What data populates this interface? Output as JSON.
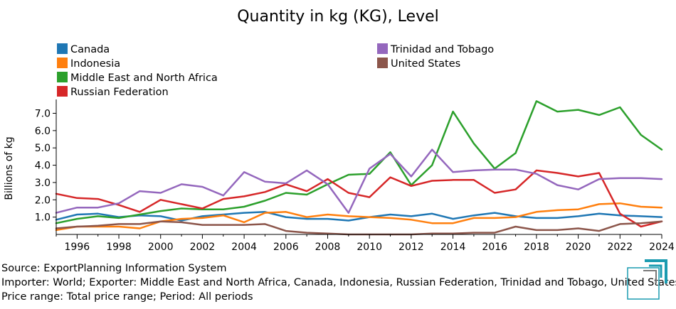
{
  "chart_data": {
    "type": "line",
    "title": "Quantity in kg (KG), Level",
    "xlabel": "",
    "ylabel": "Billions of kg",
    "xlim": [
      1995,
      2024
    ],
    "ylim": [
      0,
      7.8
    ],
    "x_ticks": [
      1996,
      1998,
      2000,
      2002,
      2004,
      2006,
      2008,
      2010,
      2012,
      2014,
      2016,
      2018,
      2020,
      2022,
      2024
    ],
    "y_ticks": [
      1.0,
      2.0,
      3.0,
      4.0,
      5.0,
      6.0,
      7.0
    ],
    "y_tick_labels": [
      "1.0",
      "2.0",
      "3.0",
      "4.0",
      "5.0",
      "6.0",
      "7.0"
    ],
    "grid": false,
    "legend_position": "top",
    "x": [
      1995,
      1996,
      1997,
      1998,
      1999,
      2000,
      2001,
      2002,
      2003,
      2004,
      2005,
      2006,
      2007,
      2008,
      2009,
      2010,
      2011,
      2012,
      2013,
      2014,
      2015,
      2016,
      2017,
      2018,
      2019,
      2020,
      2021,
      2022,
      2023,
      2024
    ],
    "series": [
      {
        "name": "Canada",
        "color": "#1f77b4",
        "values": [
          0.85,
          1.15,
          1.2,
          1.0,
          1.1,
          1.05,
          0.8,
          1.05,
          1.15,
          1.25,
          1.3,
          1.0,
          0.9,
          0.9,
          0.8,
          1.0,
          1.15,
          1.05,
          1.2,
          0.9,
          1.1,
          1.25,
          1.05,
          0.95,
          0.95,
          1.05,
          1.2,
          1.1,
          1.05,
          1.0
        ]
      },
      {
        "name": "Indonesia",
        "color": "#ff7f0e",
        "values": [
          0.25,
          0.45,
          0.45,
          0.45,
          0.35,
          0.75,
          0.9,
          0.95,
          1.1,
          0.7,
          1.25,
          1.3,
          1.0,
          1.15,
          1.05,
          1.0,
          0.95,
          0.85,
          0.65,
          0.65,
          0.95,
          0.95,
          1.0,
          1.3,
          1.4,
          1.45,
          1.75,
          1.8,
          1.6,
          1.55
        ]
      },
      {
        "name": "Middle East and North Africa",
        "color": "#2ca02c",
        "values": [
          0.65,
          0.9,
          1.05,
          0.95,
          1.15,
          1.35,
          1.5,
          1.45,
          1.45,
          1.6,
          1.95,
          2.4,
          2.3,
          2.9,
          3.45,
          3.5,
          4.75,
          2.85,
          4.0,
          7.1,
          5.25,
          3.8,
          4.7,
          7.7,
          7.1,
          7.2,
          6.9,
          7.35,
          5.75,
          4.9
        ]
      },
      {
        "name": "Russian Federation",
        "color": "#d62728",
        "values": [
          2.35,
          2.1,
          2.05,
          1.7,
          1.3,
          2.0,
          1.75,
          1.5,
          2.05,
          2.2,
          2.45,
          2.9,
          2.5,
          3.2,
          2.4,
          2.15,
          3.3,
          2.8,
          3.1,
          3.15,
          3.15,
          2.4,
          2.6,
          3.7,
          3.55,
          3.35,
          3.55,
          1.2,
          0.45,
          0.75
        ]
      },
      {
        "name": "Trinidad and Tobago",
        "color": "#9467bd",
        "values": [
          1.25,
          1.55,
          1.55,
          1.8,
          2.5,
          2.4,
          2.9,
          2.75,
          2.25,
          3.6,
          3.05,
          2.95,
          3.7,
          2.9,
          1.25,
          3.8,
          4.65,
          3.35,
          4.9,
          3.6,
          3.7,
          3.75,
          3.75,
          3.5,
          2.85,
          2.6,
          3.2,
          3.25,
          3.25,
          3.2
        ]
      },
      {
        "name": "United States",
        "color": "#8c564b",
        "values": [
          0.35,
          0.45,
          0.5,
          0.6,
          0.6,
          0.75,
          0.7,
          0.55,
          0.55,
          0.55,
          0.6,
          0.2,
          0.1,
          0.05,
          0.0,
          0.0,
          0.0,
          0.0,
          0.05,
          0.05,
          0.1,
          0.1,
          0.45,
          0.25,
          0.25,
          0.35,
          0.2,
          0.6,
          0.65,
          0.75
        ]
      }
    ]
  },
  "footer": {
    "source": "Source: ExportPlanning Information System",
    "importer": "Importer: World; Exporter: Middle East and North Africa, Canada, Indonesia, Russian Federation, Trinidad and Tobago, United States",
    "price": "Price range: Total price range; Period: All periods"
  },
  "logo": {
    "icon": "exportplanning-logo-icon",
    "color": "#1a9bb0"
  }
}
